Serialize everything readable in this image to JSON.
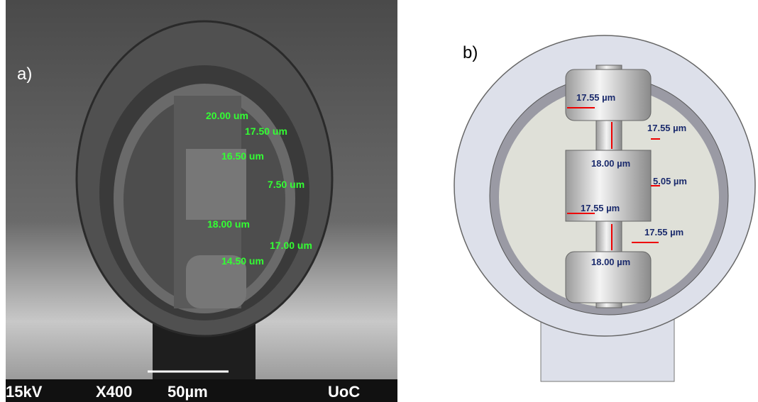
{
  "panel_a": {
    "label": "a)",
    "measurements": [
      "20.00 um",
      "17.50 um",
      "16.50 um",
      "7.50 um",
      "18.00 um",
      "17.00 um",
      "14.50 um"
    ],
    "footer": [
      "15kV",
      "X400",
      "50µm",
      "UoC"
    ]
  },
  "panel_b": {
    "label": "b)",
    "measurements": [
      "17.55 µm",
      "17.55 µm",
      "18.00 µm",
      "5.05 µm",
      "17.55 µm",
      "17.55 µm",
      "18.00 µm"
    ]
  }
}
